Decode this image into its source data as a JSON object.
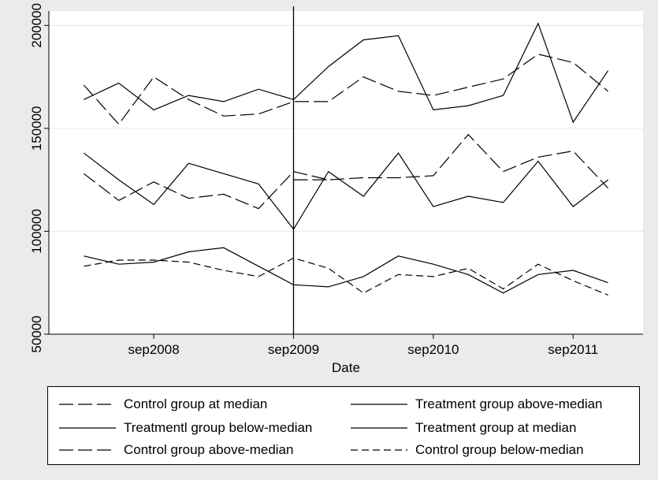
{
  "chart_data": {
    "type": "line",
    "title": "",
    "xlabel": "Date",
    "ylabel": "",
    "x_ticks": [
      "sep2008",
      "sep2009",
      "sep2010",
      "sep2011"
    ],
    "y_ticks": [
      "50000",
      "100000",
      "150000",
      "200000"
    ],
    "ylim": [
      50000,
      200000
    ],
    "grid": "horizontal",
    "reference_line": "sep2009",
    "legend_position": "bottom",
    "x": [
      "2008-03",
      "2008-06",
      "2008-09",
      "2008-12",
      "2009-03",
      "2009-06",
      "2009-09",
      "2009-12",
      "2010-03",
      "2010-06",
      "2010-09",
      "2010-12",
      "2011-03",
      "2011-06",
      "2011-09",
      "2011-12"
    ],
    "series": [
      {
        "name": "Control group at median",
        "style": "long-dash",
        "values": [
          128000,
          115000,
          124000,
          116000,
          118000,
          111000,
          129000,
          125000,
          126000,
          126000,
          127000,
          147000,
          129000,
          136000,
          139000,
          121000
        ],
        "extra": [
          [
            "2009-09",
            125000
          ],
          [
            "2009-12",
            125000
          ]
        ]
      },
      {
        "name": "Treatment group above-median",
        "style": "solid",
        "values": [
          164000,
          172000,
          159000,
          166000,
          163000,
          169000,
          164000,
          180000,
          193000,
          195000,
          159000,
          161000,
          166000,
          201000,
          153000,
          178000
        ]
      },
      {
        "name": "Treatmentl group below-median",
        "style": "solid",
        "values": [
          88000,
          84000,
          85000,
          90000,
          92000,
          83000,
          74000,
          73000,
          78000,
          88000,
          84000,
          79000,
          70000,
          79000,
          81000,
          75000
        ]
      },
      {
        "name": "Treatment group at median",
        "style": "solid",
        "values": [
          138000,
          125000,
          113000,
          133000,
          128000,
          123000,
          101000,
          129000,
          117000,
          138000,
          112000,
          117000,
          114000,
          134000,
          112000,
          125000
        ]
      },
      {
        "name": "Control group above-median",
        "style": "long-dash",
        "values": [
          171000,
          152000,
          175000,
          164000,
          156000,
          157000,
          163000,
          163000,
          175000,
          168000,
          166000,
          170000,
          174000,
          186000,
          182000,
          168000
        ]
      },
      {
        "name": "Control group below-median",
        "style": "short-dash",
        "values": [
          83000,
          86000,
          86000,
          85000,
          81000,
          78000,
          87000,
          82000,
          70000,
          79000,
          78000,
          82000,
          72000,
          84000,
          76000,
          69000
        ]
      }
    ]
  }
}
